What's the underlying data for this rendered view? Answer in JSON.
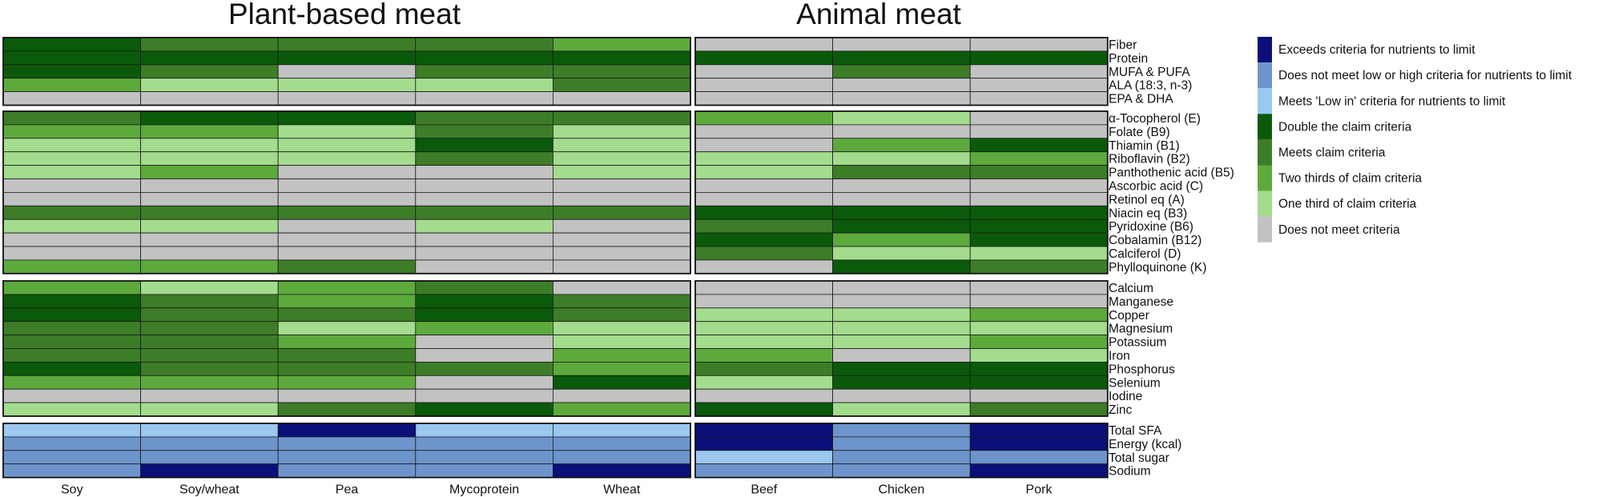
{
  "chart_data": {
    "type": "heatmap",
    "panels": [
      {
        "title": "Plant-based meat",
        "columns": [
          "Soy",
          "Soy/wheat",
          "Pea",
          "Mycoprotein",
          "Wheat"
        ]
      },
      {
        "title": "Animal meat",
        "columns": [
          "Beef",
          "Chicken",
          "Pork"
        ]
      }
    ],
    "categories": {
      "exceeds": "Exceeds criteria for nutrients to limit",
      "notlowhigh": "Does not meet low or high criteria for nutrients to limit",
      "lowin": "Meets 'Low in' criteria for nutrients to limit",
      "double": "Double the claim criteria",
      "meets": "Meets claim criteria",
      "twothirds": "Two thirds of claim criteria",
      "onethird": "One third of claim criteria",
      "none": "Does not meet criteria"
    },
    "category_codes": {
      "D": "double",
      "M": "meets",
      "T": "twothirds",
      "O": "onethird",
      "G": "none",
      "E": "exceeds",
      "N": "notlowhigh",
      "L": "lowin"
    },
    "legend_order": [
      "exceeds",
      "notlowhigh",
      "lowin",
      "double",
      "meets",
      "twothirds",
      "onethird",
      "none"
    ],
    "colors": {
      "exceeds": "#0a0f7a",
      "notlowhigh": "#6d95cc",
      "lowin": "#9cc8ef",
      "double": "#0b5a0b",
      "meets": "#3d7d27",
      "twothirds": "#5daa3c",
      "onethird": "#a3dc8d",
      "none": "#c2c2c2"
    },
    "groups": [
      {
        "rows": [
          {
            "label": "Fiber",
            "values": [
              "D",
              "M",
              "M",
              "M",
              "T",
              "G",
              "G",
              "G"
            ]
          },
          {
            "label": "Protein",
            "values": [
              "D",
              "D",
              "D",
              "D",
              "D",
              "D",
              "D",
              "D"
            ]
          },
          {
            "label": "MUFA & PUFA",
            "values": [
              "D",
              "M",
              "G",
              "M",
              "M",
              "G",
              "M",
              "G"
            ]
          },
          {
            "label": "ALA (18:3, n-3)",
            "values": [
              "T",
              "O",
              "O",
              "O",
              "M",
              "G",
              "G",
              "G"
            ]
          },
          {
            "label": "EPA & DHA",
            "values": [
              "G",
              "G",
              "G",
              "G",
              "G",
              "G",
              "G",
              "G"
            ]
          }
        ]
      },
      {
        "rows": [
          {
            "label": "α-Tocopherol (E)",
            "values": [
              "M",
              "D",
              "D",
              "M",
              "M",
              "T",
              "O",
              "G"
            ]
          },
          {
            "label": "Folate (B9)",
            "values": [
              "T",
              "T",
              "O",
              "M",
              "O",
              "G",
              "G",
              "G"
            ]
          },
          {
            "label": "Thiamin (B1)",
            "values": [
              "O",
              "O",
              "O",
              "D",
              "O",
              "G",
              "T",
              "D"
            ]
          },
          {
            "label": "Riboflavin (B2)",
            "values": [
              "O",
              "O",
              "O",
              "M",
              "O",
              "O",
              "O",
              "T"
            ]
          },
          {
            "label": "Panthothenic acid (B5)",
            "values": [
              "O",
              "T",
              "G",
              "G",
              "O",
              "O",
              "M",
              "M"
            ]
          },
          {
            "label": "Ascorbic acid (C)",
            "values": [
              "G",
              "G",
              "G",
              "G",
              "G",
              "G",
              "G",
              "G"
            ]
          },
          {
            "label": "Retinol eq (A)",
            "values": [
              "G",
              "G",
              "G",
              "G",
              "G",
              "G",
              "G",
              "G"
            ]
          },
          {
            "label": "Niacin eq (B3)",
            "values": [
              "M",
              "M",
              "M",
              "M",
              "M",
              "D",
              "D",
              "D"
            ]
          },
          {
            "label": "Pyridoxine (B6)",
            "values": [
              "O",
              "O",
              "G",
              "O",
              "G",
              "M",
              "D",
              "D"
            ]
          },
          {
            "label": "Cobalamin (B12)",
            "values": [
              "G",
              "G",
              "G",
              "G",
              "G",
              "D",
              "T",
              "D"
            ]
          },
          {
            "label": "Calciferol (D)",
            "values": [
              "G",
              "G",
              "G",
              "G",
              "G",
              "M",
              "O",
              "O"
            ]
          },
          {
            "label": "Phylloquinone (K)",
            "values": [
              "T",
              "T",
              "M",
              "G",
              "G",
              "G",
              "D",
              "M"
            ]
          }
        ]
      },
      {
        "rows": [
          {
            "label": "Calcium",
            "values": [
              "T",
              "O",
              "T",
              "M",
              "G",
              "G",
              "G",
              "G"
            ]
          },
          {
            "label": "Manganese",
            "values": [
              "D",
              "M",
              "T",
              "D",
              "M",
              "G",
              "G",
              "G"
            ]
          },
          {
            "label": "Copper",
            "values": [
              "D",
              "M",
              "M",
              "D",
              "M",
              "O",
              "O",
              "T"
            ]
          },
          {
            "label": "Magnesium",
            "values": [
              "M",
              "M",
              "O",
              "T",
              "O",
              "O",
              "O",
              "O"
            ]
          },
          {
            "label": "Potassium",
            "values": [
              "M",
              "M",
              "T",
              "G",
              "O",
              "O",
              "O",
              "T"
            ]
          },
          {
            "label": "Iron",
            "values": [
              "M",
              "M",
              "M",
              "G",
              "T",
              "T",
              "G",
              "O"
            ]
          },
          {
            "label": "Phosphorus",
            "values": [
              "D",
              "M",
              "M",
              "M",
              "T",
              "M",
              "D",
              "D"
            ]
          },
          {
            "label": "Selenium",
            "values": [
              "T",
              "T",
              "T",
              "G",
              "D",
              "O",
              "D",
              "D"
            ]
          },
          {
            "label": "Iodine",
            "values": [
              "G",
              "G",
              "G",
              "G",
              "G",
              "G",
              "G",
              "G"
            ]
          },
          {
            "label": "Zinc",
            "values": [
              "O",
              "O",
              "M",
              "D",
              "T",
              "D",
              "O",
              "M"
            ]
          }
        ]
      },
      {
        "rows": [
          {
            "label": "Total SFA",
            "values": [
              "L",
              "L",
              "E",
              "L",
              "L",
              "E",
              "N",
              "E"
            ]
          },
          {
            "label": "Energy (kcal)",
            "values": [
              "N",
              "N",
              "N",
              "N",
              "N",
              "E",
              "N",
              "E"
            ]
          },
          {
            "label": "Total sugar",
            "values": [
              "N",
              "N",
              "N",
              "N",
              "N",
              "L",
              "N",
              "N"
            ]
          },
          {
            "label": "Sodium",
            "values": [
              "N",
              "E",
              "N",
              "N",
              "E",
              "N",
              "N",
              "E"
            ]
          }
        ]
      }
    ]
  }
}
